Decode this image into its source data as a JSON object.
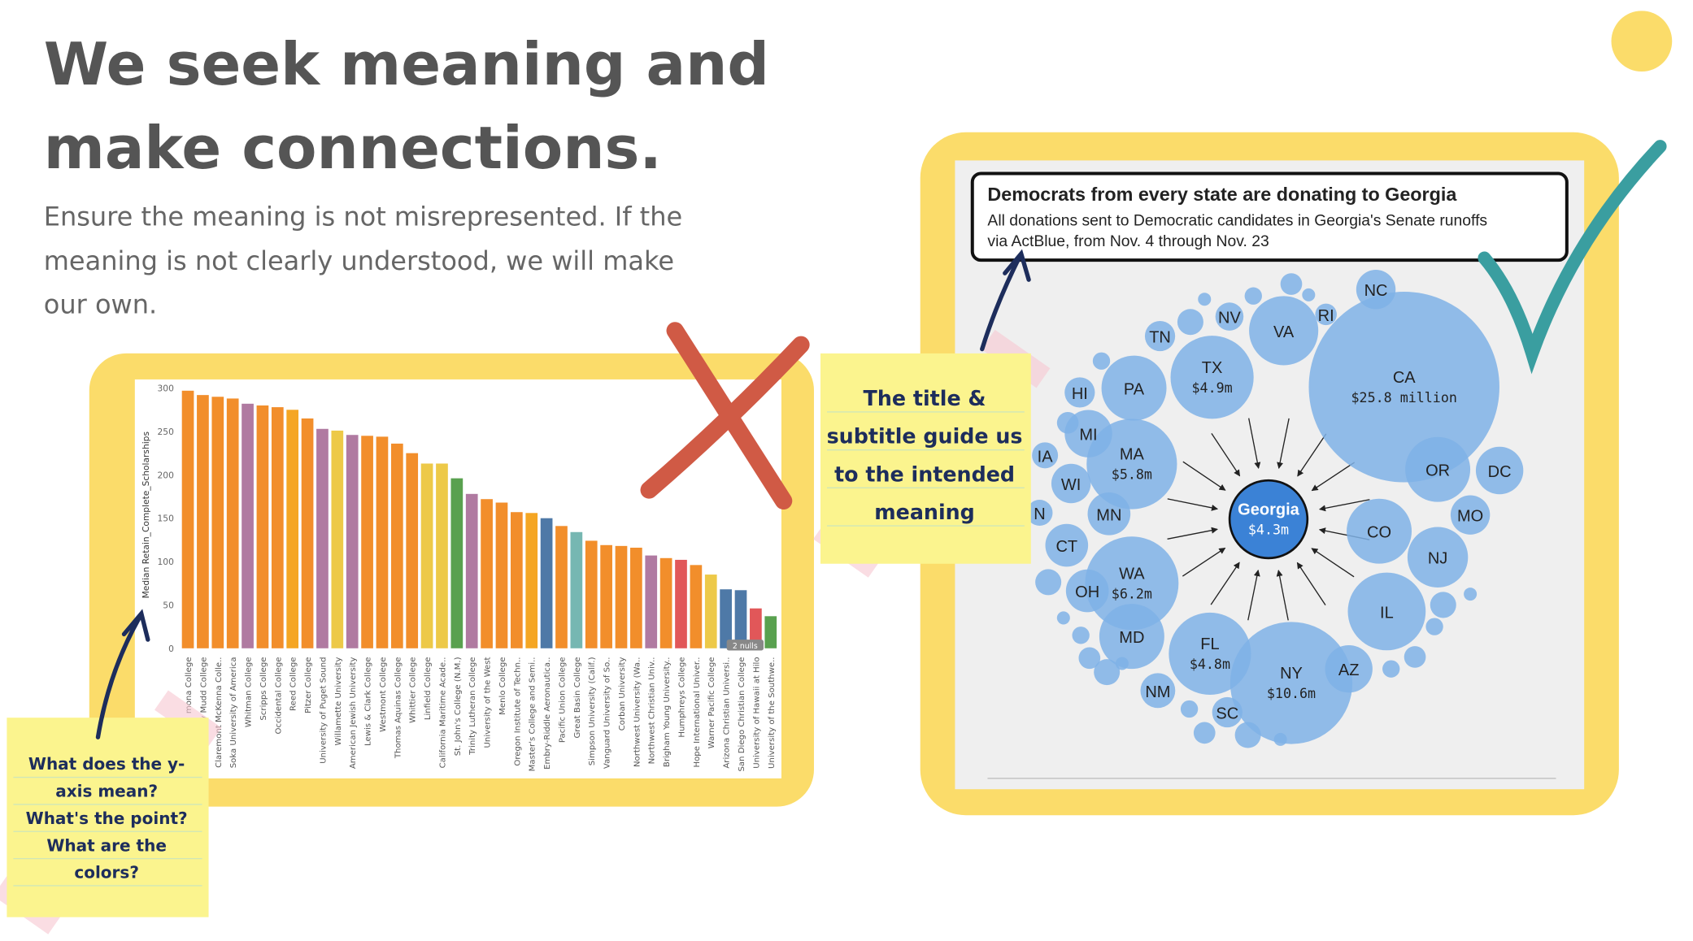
{
  "slide": {
    "title": [
      "We seek meaning and",
      "make connections."
    ],
    "subtitle": [
      "Ensure the meaning is not misrepresented. If the",
      "meaning is not clearly understood, we will make",
      "our own."
    ]
  },
  "notes": [
    {
      "lines": [
        "The title &",
        "subtitle guide us",
        "to the intended",
        "meaning"
      ]
    },
    {
      "lines": [
        "What does the y-",
        "axis mean?",
        "What's the point?",
        "What are the",
        "colors?"
      ]
    }
  ],
  "chart_data": [
    {
      "type": "bar",
      "y_label": "Median Retain_Complete_Scholarships",
      "annotation": "2 nulls",
      "categories": [
        "mona College",
        "y Mudd College",
        "Claremont McKenna Colle..",
        "Soka University of America",
        "Whitman College",
        "Scripps College",
        "Occidental College",
        "Reed College",
        "Pitzer College",
        "University of Puget Sound",
        "Willamette University",
        "American Jewish University",
        "Lewis & Clark College",
        "Westmont College",
        "Thomas Aquinas College",
        "Whittier College",
        "Linfield College",
        "California Maritime Acade..",
        "St. John's College (N.M.)",
        "Trinity Lutheran College",
        "University of the West",
        "Menlo College",
        "Oregon Institute of Techn..",
        "Master's College and Semi..",
        "Embry-Riddle Aeronautica..",
        "Pacific Union College",
        "Great Basin College",
        "Simpson University (Calif.)",
        "Vanguard University of So..",
        "Corban University",
        "Northwest University (Wa..",
        "Northwest Christian Univ..",
        "Brigham Young University..",
        "Humphreys College",
        "Hope International Univer..",
        "Warner Pacific College",
        "Arizona Christian Universi..",
        "San Diego Christian College",
        "University of Hawaii at Hilo",
        "University of the Southwe.."
      ],
      "values": [
        297,
        292,
        290,
        288,
        282,
        280,
        278,
        275,
        265,
        253,
        251,
        246,
        245,
        244,
        236,
        225,
        213,
        213,
        196,
        178,
        172,
        168,
        157,
        156,
        150,
        141,
        134,
        124,
        119,
        118,
        116,
        107,
        104,
        102,
        96,
        85,
        68,
        67,
        46,
        37
      ],
      "colors": [
        "#f28e2b",
        "#f28e2b",
        "#f28e2b",
        "#f28e2b",
        "#b07aa1",
        "#f28e2b",
        "#f28e2b",
        "#f5a623",
        "#f28e2b",
        "#b07aa1",
        "#edc948",
        "#b07aa1",
        "#f28e2b",
        "#f28e2b",
        "#f28e2b",
        "#f28e2b",
        "#edc948",
        "#edc948",
        "#59a14f",
        "#b07aa1",
        "#f28e2b",
        "#f28e2b",
        "#f28e2b",
        "#f5a623",
        "#4e79a7",
        "#f28e2b",
        "#76b7b2",
        "#f28e2b",
        "#f28e2b",
        "#f28e2b",
        "#f28e2b",
        "#b07aa1",
        "#f28e2b",
        "#e15759",
        "#f28e2b",
        "#edc948",
        "#4e79a7",
        "#4e79a7",
        "#e15759",
        "#59a14f"
      ],
      "ylim": [
        0,
        300
      ],
      "yticks": [
        0,
        50,
        100,
        150,
        200,
        250,
        300
      ]
    },
    {
      "type": "bubble",
      "title": "Democrats from every state are donating to Georgia",
      "subtitle": [
        "All donations sent to Democratic candidates in Georgia's Senate runoffs",
        "via ActBlue, from Nov. 4 through Nov. 23"
      ],
      "categories": [
        "Georgia",
        "CA",
        "NY",
        "WA",
        "MA",
        "TX",
        "FL",
        "NC",
        "NV",
        "VA",
        "RI",
        "TN",
        "PA",
        "HI",
        "MI",
        "IA",
        "WI",
        "MN",
        "N",
        "CT",
        "OH",
        "MD",
        "NM",
        "SC",
        "AZ",
        "OR",
        "DC",
        "MO",
        "CO",
        "NJ",
        "IL"
      ],
      "values": [
        4.3,
        25.8,
        10.6,
        6.2,
        5.8,
        4.9,
        4.8,
        1.1,
        0.56,
        3.4,
        0.33,
        0.65,
        3.0,
        0.65,
        1.6,
        0.48,
        1.1,
        1.3,
        0.48,
        1.3,
        1.3,
        3.0,
        0.86,
        0.65,
        1.6,
        3.0,
        1.6,
        1.1,
        3.0,
        2.6,
        4.3
      ],
      "value_labels": [
        "$4.3m",
        "$25.8 million",
        "$10.6m",
        "$6.2m",
        "$5.8m",
        "$4.9m",
        "$4.8m",
        null,
        null,
        null,
        null,
        null,
        null,
        null,
        null,
        null,
        null,
        null,
        null,
        null,
        null,
        null,
        null,
        null,
        null,
        null,
        null,
        null,
        null,
        null,
        null
      ],
      "color": "#7fb1e6",
      "highlight_color": "#3b82d6"
    }
  ]
}
